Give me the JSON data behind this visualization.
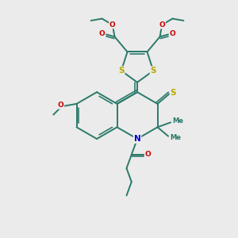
{
  "bg_color": "#ebebeb",
  "bond_color": "#2a7a6a",
  "bond_width": 1.4,
  "atom_colors": {
    "S": "#b8a800",
    "O": "#cc0000",
    "N": "#0000cc",
    "C": "#2a7a6a"
  },
  "figsize": [
    3.0,
    3.0
  ],
  "dpi": 100,
  "xlim": [
    0,
    10
  ],
  "ylim": [
    0,
    10
  ]
}
